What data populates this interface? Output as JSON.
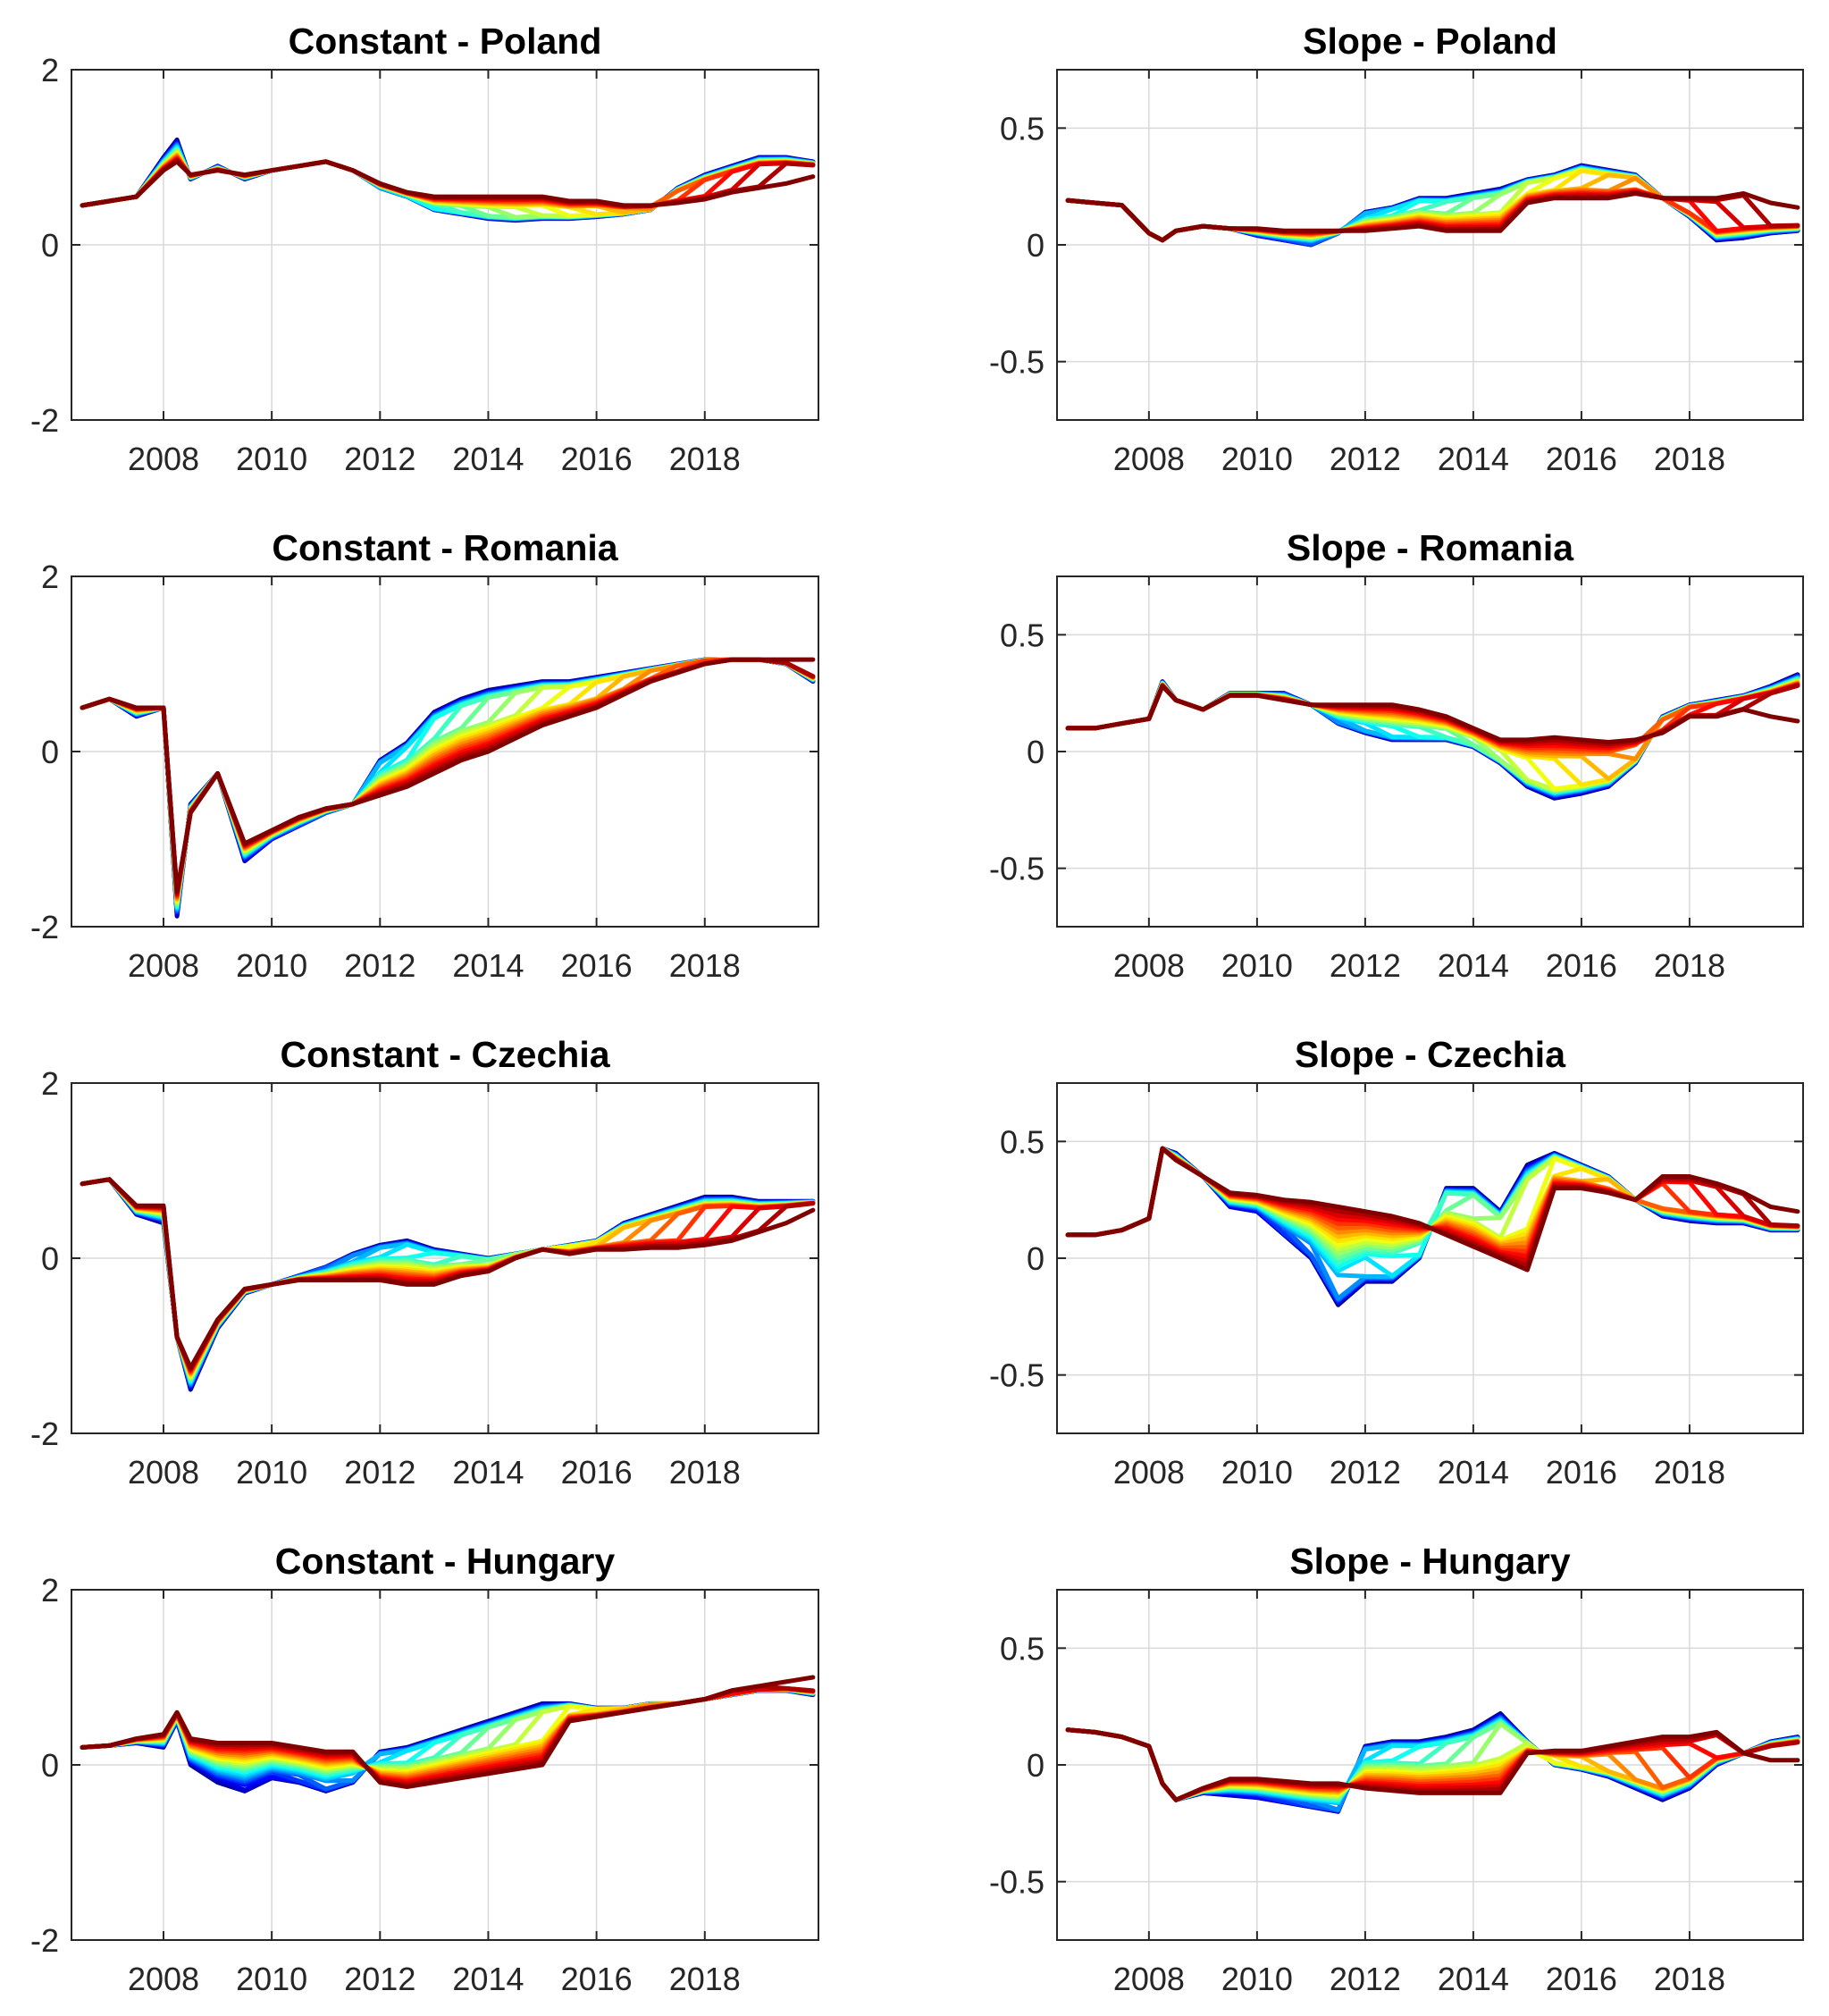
{
  "chart_data": [
    {
      "type": "line",
      "title": "Constant - Poland",
      "xlim": [
        2006.3,
        2020.1
      ],
      "ylim": [
        -2,
        2
      ],
      "xticks": [
        2008,
        2010,
        2012,
        2014,
        2016,
        2018
      ],
      "yticks": [
        -2,
        0,
        2
      ],
      "grid": true,
      "series_count": 24,
      "colormap": "jet",
      "colormap_order": "first vintage blue to last vintage red",
      "x": [
        2006.5,
        2007.0,
        2007.5,
        2008.0,
        2008.25,
        2008.5,
        2009.0,
        2009.5,
        2010.0,
        2010.5,
        2011.0,
        2011.5,
        2012.0,
        2012.5,
        2013.0,
        2013.5,
        2014.0,
        2014.5,
        2015.0,
        2015.5,
        2016.0,
        2016.5,
        2017.0,
        2017.5,
        2018.0,
        2018.5,
        2019.0,
        2019.5,
        2020.0
      ],
      "estimate_first": [
        0.45,
        0.5,
        0.55,
        1.0,
        1.2,
        0.75,
        0.9,
        0.75,
        0.85,
        0.9,
        0.95,
        0.85,
        0.65,
        0.55,
        0.4,
        0.35,
        0.3,
        0.28,
        0.3,
        0.3,
        0.32,
        0.35,
        0.4,
        0.65,
        0.8,
        0.9,
        1.0,
        1.0,
        0.95
      ],
      "estimate_last": [
        0.45,
        0.5,
        0.55,
        0.85,
        0.95,
        0.8,
        0.85,
        0.8,
        0.85,
        0.9,
        0.95,
        0.85,
        0.7,
        0.6,
        0.55,
        0.55,
        0.55,
        0.55,
        0.55,
        0.5,
        0.5,
        0.45,
        0.45,
        0.48,
        0.52,
        0.6,
        0.65,
        0.7,
        0.78
      ],
      "real_time_step_years": 0.5
    },
    {
      "type": "line",
      "title": "Slope - Poland",
      "xlim": [
        2006.3,
        2020.1
      ],
      "ylim": [
        -0.75,
        0.75
      ],
      "xticks": [
        2008,
        2010,
        2012,
        2014,
        2016,
        2018
      ],
      "yticks": [
        -0.5,
        0,
        0.5
      ],
      "grid": true,
      "series_count": 24,
      "colormap": "jet",
      "colormap_order": "first vintage blue to last vintage red",
      "x": [
        2006.5,
        2007.0,
        2007.5,
        2008.0,
        2008.25,
        2008.5,
        2009.0,
        2009.5,
        2010.0,
        2010.5,
        2011.0,
        2011.5,
        2012.0,
        2012.5,
        2013.0,
        2013.5,
        2014.0,
        2014.5,
        2015.0,
        2015.5,
        2016.0,
        2016.5,
        2017.0,
        2017.5,
        2018.0,
        2018.5,
        2019.0,
        2019.5,
        2020.0
      ],
      "estimate_first": [
        0.19,
        0.18,
        0.17,
        0.05,
        0.02,
        0.06,
        0.08,
        0.07,
        0.04,
        0.02,
        0.0,
        0.05,
        0.14,
        0.16,
        0.2,
        0.2,
        0.22,
        0.24,
        0.28,
        0.3,
        0.34,
        0.32,
        0.3,
        0.2,
        0.12,
        0.02,
        0.03,
        0.05,
        0.06
      ],
      "estimate_last": [
        0.19,
        0.18,
        0.17,
        0.05,
        0.02,
        0.06,
        0.08,
        0.07,
        0.07,
        0.06,
        0.06,
        0.06,
        0.06,
        0.07,
        0.08,
        0.06,
        0.06,
        0.06,
        0.18,
        0.2,
        0.2,
        0.2,
        0.22,
        0.2,
        0.2,
        0.2,
        0.22,
        0.18,
        0.16
      ],
      "real_time_step_years": 0.5
    },
    {
      "type": "line",
      "title": "Constant - Romania",
      "xlim": [
        2006.3,
        2020.1
      ],
      "ylim": [
        -2,
        2
      ],
      "xticks": [
        2008,
        2010,
        2012,
        2014,
        2016,
        2018
      ],
      "yticks": [
        -2,
        0,
        2
      ],
      "grid": true,
      "series_count": 24,
      "colormap": "jet",
      "colormap_order": "first vintage blue to last vintage red",
      "x": [
        2006.5,
        2007.0,
        2007.5,
        2008.0,
        2008.25,
        2008.5,
        2009.0,
        2009.5,
        2010.0,
        2010.5,
        2011.0,
        2011.5,
        2012.0,
        2012.5,
        2013.0,
        2013.5,
        2014.0,
        2014.5,
        2015.0,
        2015.5,
        2016.0,
        2016.5,
        2017.0,
        2017.5,
        2018.0,
        2018.5,
        2019.0,
        2019.5,
        2020.0
      ],
      "estimate_first": [
        0.5,
        0.6,
        0.4,
        0.5,
        -1.88,
        -0.6,
        -0.25,
        -1.25,
        -1.0,
        -0.85,
        -0.7,
        -0.6,
        -0.1,
        0.1,
        0.45,
        0.6,
        0.7,
        0.75,
        0.8,
        0.8,
        0.85,
        0.9,
        0.95,
        1.0,
        1.05,
        1.05,
        1.05,
        1.0,
        0.8
      ],
      "estimate_last": [
        0.5,
        0.6,
        0.5,
        0.5,
        -1.6,
        -0.7,
        -0.25,
        -1.05,
        -0.9,
        -0.75,
        -0.65,
        -0.6,
        -0.5,
        -0.4,
        -0.25,
        -0.1,
        0.0,
        0.15,
        0.3,
        0.4,
        0.5,
        0.65,
        0.8,
        0.9,
        1.0,
        1.05,
        1.05,
        1.05,
        1.05
      ],
      "real_time_step_years": 0.5
    },
    {
      "type": "line",
      "title": "Slope - Romania",
      "xlim": [
        2006.3,
        2020.1
      ],
      "ylim": [
        -0.75,
        0.75
      ],
      "xticks": [
        2008,
        2010,
        2012,
        2014,
        2016,
        2018
      ],
      "yticks": [
        -0.5,
        0,
        0.5
      ],
      "grid": true,
      "series_count": 24,
      "colormap": "jet",
      "colormap_order": "first vintage blue to last vintage red",
      "x": [
        2006.5,
        2007.0,
        2007.5,
        2008.0,
        2008.25,
        2008.5,
        2009.0,
        2009.5,
        2010.0,
        2010.5,
        2011.0,
        2011.5,
        2012.0,
        2012.5,
        2013.0,
        2013.5,
        2014.0,
        2014.5,
        2015.0,
        2015.5,
        2016.0,
        2016.5,
        2017.0,
        2017.5,
        2018.0,
        2018.5,
        2019.0,
        2019.5,
        2020.0
      ],
      "estimate_first": [
        0.1,
        0.1,
        0.12,
        0.14,
        0.3,
        0.22,
        0.18,
        0.25,
        0.25,
        0.25,
        0.2,
        0.12,
        0.08,
        0.05,
        0.05,
        0.05,
        0.02,
        -0.05,
        -0.15,
        -0.2,
        -0.18,
        -0.15,
        -0.05,
        0.15,
        0.2,
        0.22,
        0.24,
        0.28,
        0.33
      ],
      "estimate_last": [
        0.1,
        0.1,
        0.12,
        0.14,
        0.28,
        0.22,
        0.18,
        0.24,
        0.24,
        0.22,
        0.2,
        0.2,
        0.2,
        0.2,
        0.18,
        0.15,
        0.1,
        0.05,
        0.05,
        0.06,
        0.05,
        0.04,
        0.05,
        0.08,
        0.15,
        0.15,
        0.18,
        0.15,
        0.13
      ],
      "real_time_step_years": 0.5
    },
    {
      "type": "line",
      "title": "Constant - Czechia",
      "xlim": [
        2006.3,
        2020.1
      ],
      "ylim": [
        -2,
        2
      ],
      "xticks": [
        2008,
        2010,
        2012,
        2014,
        2016,
        2018
      ],
      "yticks": [
        -2,
        0,
        2
      ],
      "grid": true,
      "series_count": 24,
      "colormap": "jet",
      "colormap_order": "first vintage blue to last vintage red",
      "x": [
        2006.5,
        2007.0,
        2007.5,
        2008.0,
        2008.25,
        2008.5,
        2009.0,
        2009.5,
        2010.0,
        2010.5,
        2011.0,
        2011.5,
        2012.0,
        2012.5,
        2013.0,
        2013.5,
        2014.0,
        2014.5,
        2015.0,
        2015.5,
        2016.0,
        2016.5,
        2017.0,
        2017.5,
        2018.0,
        2018.5,
        2019.0,
        2019.5,
        2020.0
      ],
      "estimate_first": [
        0.85,
        0.9,
        0.5,
        0.4,
        -0.9,
        -1.5,
        -0.8,
        -0.4,
        -0.3,
        -0.2,
        -0.1,
        0.05,
        0.15,
        0.2,
        0.1,
        0.05,
        0.0,
        0.05,
        0.1,
        0.15,
        0.2,
        0.4,
        0.5,
        0.6,
        0.7,
        0.7,
        0.65,
        0.65,
        0.65
      ],
      "estimate_last": [
        0.85,
        0.9,
        0.6,
        0.6,
        -0.9,
        -1.25,
        -0.7,
        -0.35,
        -0.3,
        -0.25,
        -0.25,
        -0.25,
        -0.25,
        -0.3,
        -0.3,
        -0.2,
        -0.15,
        0.0,
        0.1,
        0.05,
        0.1,
        0.1,
        0.12,
        0.12,
        0.15,
        0.2,
        0.3,
        0.4,
        0.55
      ],
      "real_time_step_years": 0.5
    },
    {
      "type": "line",
      "title": "Slope - Czechia",
      "xlim": [
        2006.3,
        2020.1
      ],
      "ylim": [
        -0.75,
        0.75
      ],
      "xticks": [
        2008,
        2010,
        2012,
        2014,
        2016,
        2018
      ],
      "yticks": [
        -0.5,
        0,
        0.5
      ],
      "grid": true,
      "series_count": 24,
      "colormap": "jet",
      "colormap_order": "first vintage blue to last vintage red",
      "x": [
        2006.5,
        2007.0,
        2007.5,
        2008.0,
        2008.25,
        2008.5,
        2009.0,
        2009.5,
        2010.0,
        2010.5,
        2011.0,
        2011.5,
        2012.0,
        2012.5,
        2013.0,
        2013.5,
        2014.0,
        2014.5,
        2015.0,
        2015.5,
        2016.0,
        2016.5,
        2017.0,
        2017.5,
        2018.0,
        2018.5,
        2019.0,
        2019.5,
        2020.0
      ],
      "estimate_first": [
        0.1,
        0.1,
        0.12,
        0.17,
        0.47,
        0.45,
        0.35,
        0.22,
        0.2,
        0.1,
        0.0,
        -0.2,
        -0.1,
        -0.1,
        0.0,
        0.3,
        0.3,
        0.2,
        0.4,
        0.45,
        0.4,
        0.35,
        0.25,
        0.18,
        0.16,
        0.15,
        0.15,
        0.12,
        0.12
      ],
      "estimate_last": [
        0.1,
        0.1,
        0.12,
        0.17,
        0.47,
        0.42,
        0.35,
        0.28,
        0.27,
        0.25,
        0.24,
        0.22,
        0.2,
        0.18,
        0.15,
        0.1,
        0.05,
        0.0,
        -0.05,
        0.3,
        0.3,
        0.28,
        0.25,
        0.35,
        0.35,
        0.32,
        0.28,
        0.22,
        0.2
      ],
      "real_time_step_years": 0.5
    },
    {
      "type": "line",
      "title": "Constant - Hungary",
      "xlim": [
        2006.3,
        2020.1
      ],
      "ylim": [
        -2,
        2
      ],
      "xticks": [
        2008,
        2010,
        2012,
        2014,
        2016,
        2018
      ],
      "yticks": [
        -2,
        0,
        2
      ],
      "grid": true,
      "series_count": 24,
      "colormap": "jet",
      "colormap_order": "first vintage blue to last vintage red",
      "x": [
        2006.5,
        2007.0,
        2007.5,
        2008.0,
        2008.25,
        2008.5,
        2009.0,
        2009.5,
        2010.0,
        2010.5,
        2011.0,
        2011.5,
        2012.0,
        2012.5,
        2013.0,
        2013.5,
        2014.0,
        2014.5,
        2015.0,
        2015.5,
        2016.0,
        2016.5,
        2017.0,
        2017.5,
        2018.0,
        2018.5,
        2019.0,
        2019.5,
        2020.0
      ],
      "estimate_first": [
        0.2,
        0.22,
        0.25,
        0.2,
        0.5,
        0.0,
        -0.2,
        -0.3,
        -0.15,
        -0.2,
        -0.3,
        -0.2,
        0.15,
        0.2,
        0.3,
        0.4,
        0.5,
        0.6,
        0.7,
        0.7,
        0.65,
        0.65,
        0.7,
        0.7,
        0.75,
        0.8,
        0.85,
        0.85,
        0.8
      ],
      "estimate_last": [
        0.2,
        0.22,
        0.3,
        0.35,
        0.6,
        0.3,
        0.25,
        0.25,
        0.25,
        0.2,
        0.15,
        0.15,
        -0.2,
        -0.25,
        -0.2,
        -0.15,
        -0.1,
        -0.05,
        0.0,
        0.5,
        0.55,
        0.6,
        0.65,
        0.7,
        0.75,
        0.85,
        0.9,
        0.95,
        1.0
      ],
      "real_time_step_years": 0.5
    },
    {
      "type": "line",
      "title": "Slope - Hungary",
      "xlim": [
        2006.3,
        2020.1
      ],
      "ylim": [
        -0.75,
        0.75
      ],
      "xticks": [
        2008,
        2010,
        2012,
        2014,
        2016,
        2018
      ],
      "yticks": [
        -0.5,
        0,
        0.5
      ],
      "grid": true,
      "series_count": 24,
      "colormap": "jet",
      "colormap_order": "first vintage blue to last vintage red",
      "x": [
        2006.5,
        2007.0,
        2007.5,
        2008.0,
        2008.25,
        2008.5,
        2009.0,
        2009.5,
        2010.0,
        2010.5,
        2011.0,
        2011.5,
        2012.0,
        2012.5,
        2013.0,
        2013.5,
        2014.0,
        2014.5,
        2015.0,
        2015.5,
        2016.0,
        2016.5,
        2017.0,
        2017.5,
        2018.0,
        2018.5,
        2019.0,
        2019.5,
        2020.0
      ],
      "estimate_first": [
        0.15,
        0.14,
        0.12,
        0.08,
        -0.08,
        -0.15,
        -0.12,
        -0.13,
        -0.14,
        -0.16,
        -0.18,
        -0.2,
        0.08,
        0.1,
        0.1,
        0.12,
        0.15,
        0.22,
        0.1,
        0.0,
        -0.02,
        -0.05,
        -0.1,
        -0.15,
        -0.1,
        0.0,
        0.05,
        0.1,
        0.12
      ],
      "estimate_last": [
        0.15,
        0.14,
        0.12,
        0.08,
        -0.08,
        -0.15,
        -0.1,
        -0.06,
        -0.06,
        -0.07,
        -0.08,
        -0.08,
        -0.1,
        -0.11,
        -0.12,
        -0.12,
        -0.12,
        -0.12,
        0.05,
        0.06,
        0.06,
        0.08,
        0.1,
        0.12,
        0.12,
        0.14,
        0.05,
        0.02,
        0.02
      ],
      "real_time_step_years": 0.5
    }
  ]
}
